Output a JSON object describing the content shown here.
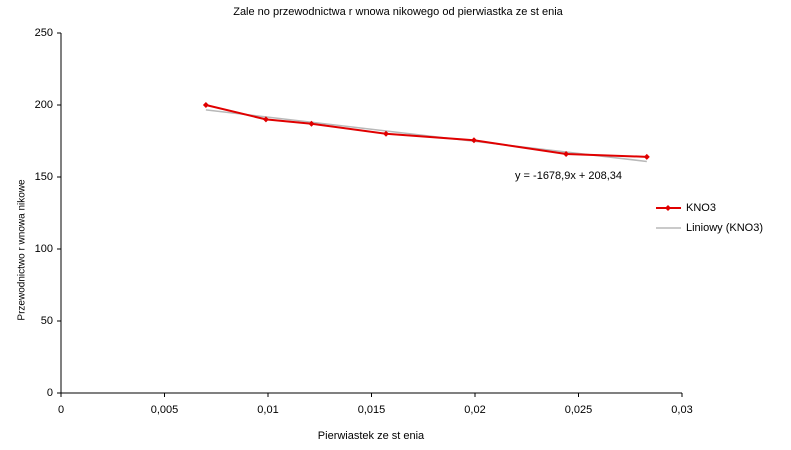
{
  "chart_data": {
    "type": "scatter",
    "title": "Zale no   przewodnictwa r wnowa nikowego od pierwiastka ze st  enia",
    "x_label": "Pierwiastek ze st  enia",
    "y_label": "Przewodnictwo r wnowa nikowe",
    "annotation": "y = -1678,9x + 208,34",
    "xlim": [
      0,
      0.03
    ],
    "xticks": [
      0,
      {
        "value": 0.005,
        "label": "0,005"
      },
      {
        "value": 0.01,
        "label": "0,01"
      },
      {
        "value": 0.015,
        "label": "0,015"
      },
      {
        "value": 0.02,
        "label": "0,02"
      },
      {
        "value": 0.025,
        "label": "0,025"
      },
      {
        "value": 0.03,
        "label": "0,03"
      }
    ],
    "ylim": [
      0,
      250
    ],
    "yticks": [
      0,
      50,
      100,
      150,
      200,
      250
    ],
    "series": [
      {
        "name": "KNO3",
        "color": "#e00000",
        "x": [
          0.007,
          0.0099,
          0.0121,
          0.0157,
          0.01995,
          0.0244,
          0.0283
        ],
        "values": [
          200,
          190,
          187,
          180,
          175.5,
          166,
          164
        ]
      },
      {
        "name": "Liniowy (KNO3)",
        "color": "#b8b8b8",
        "x": [
          0.007,
          0.0283
        ],
        "values": [
          196.6,
          160.8
        ]
      }
    ]
  }
}
